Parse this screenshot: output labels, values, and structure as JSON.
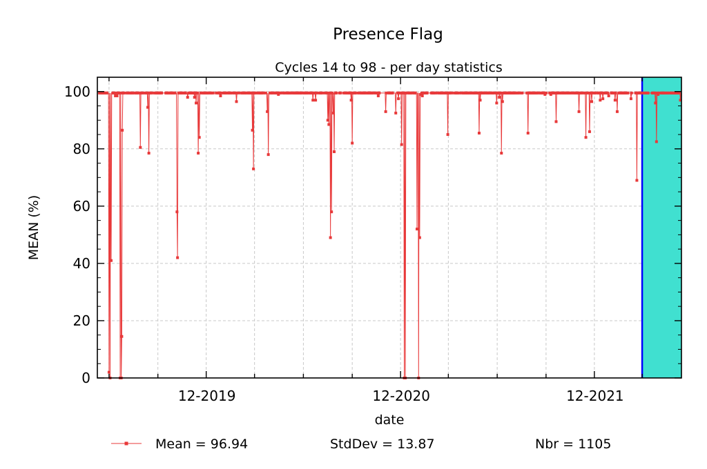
{
  "chart_data": {
    "type": "line",
    "title": "Presence Flag",
    "subtitle": "Cycles 14 to 98 - per day statistics",
    "xlabel": "date",
    "ylabel": "MEAN (%)",
    "xlim": [
      "2019-05-10",
      "2022-05-14"
    ],
    "ylim": [
      0,
      105
    ],
    "x_ticks": [
      "12-2019",
      "12-2020",
      "12-2021"
    ],
    "y_ticks": [
      "0",
      "20",
      "40",
      "60",
      "80",
      "100"
    ],
    "grid": true,
    "baseline": 99.5,
    "highlight_region": {
      "from": "2022-03-01",
      "to": "2022-05-14",
      "color": "#40e0d0",
      "edge_color": "#0000ff"
    },
    "series": [
      {
        "name": "Mean = 96.94",
        "color": "#e8393a",
        "points": [
          [
            "2019-06-01",
            2
          ],
          [
            "2019-06-03",
            0
          ],
          [
            "2019-06-05",
            41
          ],
          [
            "2019-06-08",
            99.5
          ],
          [
            "2019-06-13",
            98.5
          ],
          [
            "2019-06-16",
            98.5
          ],
          [
            "2019-06-22",
            0
          ],
          [
            "2019-06-24",
            0
          ],
          [
            "2019-06-25",
            14.5
          ],
          [
            "2019-06-26",
            86.5
          ],
          [
            "2019-06-28",
            99.5
          ],
          [
            "2019-07-30",
            80.5
          ],
          [
            "2019-08-02",
            99.5
          ],
          [
            "2019-08-13",
            94.5
          ],
          [
            "2019-08-15",
            78.5
          ],
          [
            "2019-08-18",
            99.5
          ],
          [
            "2019-10-07",
            58
          ],
          [
            "2019-10-08",
            42
          ],
          [
            "2019-10-11",
            99.5
          ],
          [
            "2019-10-27",
            98
          ],
          [
            "2019-11-09",
            98
          ],
          [
            "2019-11-12",
            96
          ],
          [
            "2019-11-16",
            78.5
          ],
          [
            "2019-11-18",
            84
          ],
          [
            "2019-11-21",
            99.5
          ],
          [
            "2019-12-28",
            98.5
          ],
          [
            "2020-01-27",
            96.5
          ],
          [
            "2020-02-26",
            86.5
          ],
          [
            "2020-02-28",
            73
          ],
          [
            "2020-03-02",
            99.5
          ],
          [
            "2020-03-25",
            93
          ],
          [
            "2020-03-27",
            78
          ],
          [
            "2020-03-30",
            99.5
          ],
          [
            "2020-04-15",
            99
          ],
          [
            "2020-06-19",
            97
          ],
          [
            "2020-06-24",
            97
          ],
          [
            "2020-07-17",
            90
          ],
          [
            "2020-07-19",
            88.5
          ],
          [
            "2020-07-22",
            49
          ],
          [
            "2020-07-24",
            58
          ],
          [
            "2020-07-27",
            92.5
          ],
          [
            "2020-07-29",
            79
          ],
          [
            "2020-08-02",
            99.5
          ],
          [
            "2020-08-30",
            97
          ],
          [
            "2020-09-01",
            82
          ],
          [
            "2020-09-04",
            99.5
          ],
          [
            "2020-10-20",
            98.5
          ],
          [
            "2020-11-03",
            93
          ],
          [
            "2020-11-22",
            92.5
          ],
          [
            "2020-11-27",
            97.5
          ],
          [
            "2020-12-03",
            81.5
          ],
          [
            "2020-12-08",
            0
          ],
          [
            "2020-12-10",
            0
          ],
          [
            "2020-12-14",
            99.5
          ],
          [
            "2021-01-01",
            52
          ],
          [
            "2021-01-04",
            0
          ],
          [
            "2021-01-06",
            49
          ],
          [
            "2021-01-08",
            99
          ],
          [
            "2021-01-11",
            98.5
          ],
          [
            "2021-02-28",
            85
          ],
          [
            "2021-03-03",
            99.5
          ],
          [
            "2021-04-28",
            85.5
          ],
          [
            "2021-04-30",
            97
          ],
          [
            "2021-05-03",
            99.5
          ],
          [
            "2021-05-31",
            96
          ],
          [
            "2021-06-05",
            98
          ],
          [
            "2021-06-09",
            78.5
          ],
          [
            "2021-06-11",
            96.5
          ],
          [
            "2021-06-14",
            99.5
          ],
          [
            "2021-07-29",
            85.5
          ],
          [
            "2021-08-02",
            99.5
          ],
          [
            "2021-08-30",
            99
          ],
          [
            "2021-09-10",
            99
          ],
          [
            "2021-09-20",
            89.5
          ],
          [
            "2021-09-23",
            99.5
          ],
          [
            "2021-11-02",
            93
          ],
          [
            "2021-11-15",
            84
          ],
          [
            "2021-11-22",
            86
          ],
          [
            "2021-11-26",
            96.5
          ],
          [
            "2021-12-01",
            99.5
          ],
          [
            "2021-12-12",
            97
          ],
          [
            "2021-12-17",
            97.5
          ],
          [
            "2021-12-28",
            98.5
          ],
          [
            "2022-01-09",
            97
          ],
          [
            "2022-01-13",
            93
          ],
          [
            "2022-01-16",
            99.5
          ],
          [
            "2022-02-08",
            97.5
          ],
          [
            "2022-02-19",
            69
          ],
          [
            "2022-02-22",
            99.5
          ],
          [
            "2022-03-26",
            96
          ],
          [
            "2022-03-28",
            82.5
          ],
          [
            "2022-03-31",
            99
          ],
          [
            "2022-05-12",
            97
          ]
        ]
      }
    ],
    "legend": {
      "mean_label": "Mean = 96.94",
      "stddev_label": "StdDev = 13.87",
      "nbr_label": "Nbr = 1105"
    }
  }
}
